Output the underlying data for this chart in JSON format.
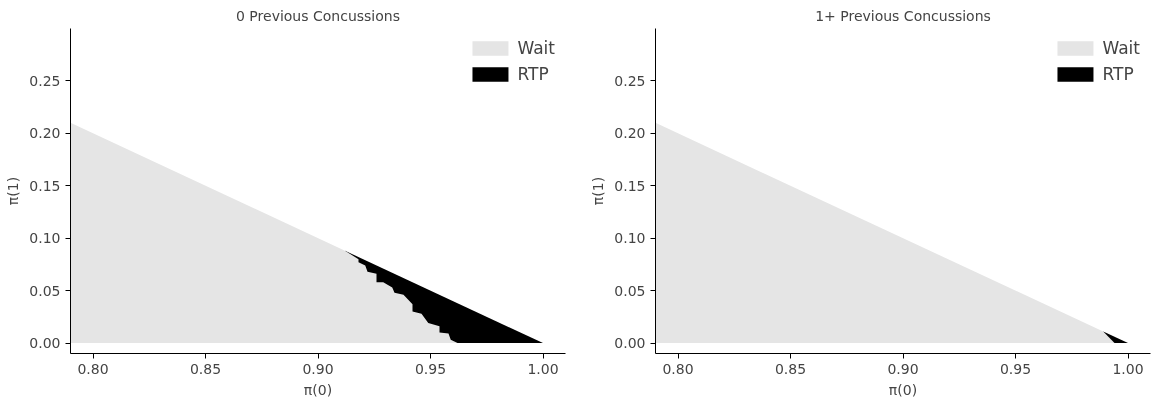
{
  "chart_data": [
    {
      "type": "area",
      "title": "0 Previous Concussions",
      "xlabel": "π(0)",
      "ylabel": "π(1)",
      "xlim": [
        0.79,
        1.01
      ],
      "ylim": [
        -0.01,
        0.3
      ],
      "xticks": [
        {
          "value": 0.8,
          "label": "0.80"
        },
        {
          "value": 0.85,
          "label": "0.85"
        },
        {
          "value": 0.9,
          "label": "0.90"
        },
        {
          "value": 0.95,
          "label": "0.95"
        },
        {
          "value": 1.0,
          "label": "1.00"
        }
      ],
      "yticks": [
        {
          "value": 0,
          "label": "0.00"
        },
        {
          "value": 0.05,
          "label": "0.05"
        },
        {
          "value": 0.1,
          "label": "0.10"
        },
        {
          "value": 0.15,
          "label": "0.15"
        },
        {
          "value": 0.2,
          "label": "0.20"
        },
        {
          "value": 0.25,
          "label": "0.25"
        }
      ],
      "grid": false,
      "legend": "top right",
      "series": [
        {
          "name": "Wait",
          "color": "#e5e5e5",
          "x": [
            0.79,
            0.912,
            0.918,
            0.918,
            0.921,
            0.922,
            0.926,
            0.926,
            0.929,
            0.933,
            0.934,
            0.938,
            0.942,
            0.942,
            0.946,
            0.949,
            0.954,
            0.954,
            0.958,
            0.959,
            0.962
          ],
          "values": [
            0.21,
            0.088,
            0.08,
            0.077,
            0.074,
            0.068,
            0.066,
            0.058,
            0.058,
            0.053,
            0.048,
            0.046,
            0.037,
            0.03,
            0.028,
            0.019,
            0.016,
            0.01,
            0.009,
            0.003,
            0
          ]
        },
        {
          "name": "RTP",
          "color": "#000000",
          "x": [
            0.912,
            0.962,
            1.0
          ],
          "values": [
            0.088,
            0.038,
            0
          ]
        }
      ]
    },
    {
      "type": "area",
      "title": "1+ Previous Concussions",
      "xlabel": "π(0)",
      "ylabel": "π(1)",
      "xlim": [
        0.79,
        1.01
      ],
      "ylim": [
        -0.01,
        0.3
      ],
      "xticks": [
        {
          "value": 0.8,
          "label": "0.80"
        },
        {
          "value": 0.85,
          "label": "0.85"
        },
        {
          "value": 0.9,
          "label": "0.90"
        },
        {
          "value": 0.95,
          "label": "0.95"
        },
        {
          "value": 1.0,
          "label": "1.00"
        }
      ],
      "yticks": [
        {
          "value": 0,
          "label": "0.00"
        },
        {
          "value": 0.05,
          "label": "0.05"
        },
        {
          "value": 0.1,
          "label": "0.10"
        },
        {
          "value": 0.15,
          "label": "0.15"
        },
        {
          "value": 0.2,
          "label": "0.20"
        },
        {
          "value": 0.25,
          "label": "0.25"
        }
      ],
      "grid": false,
      "legend": "top right",
      "series": [
        {
          "name": "Wait",
          "color": "#e5e5e5",
          "x": [
            0.79,
            0.989,
            0.994
          ],
          "values": [
            0.21,
            0.011,
            0
          ]
        },
        {
          "name": "RTP",
          "color": "#000000",
          "x": [
            0.989,
            1.0
          ],
          "values": [
            0.011,
            0
          ]
        }
      ]
    }
  ]
}
